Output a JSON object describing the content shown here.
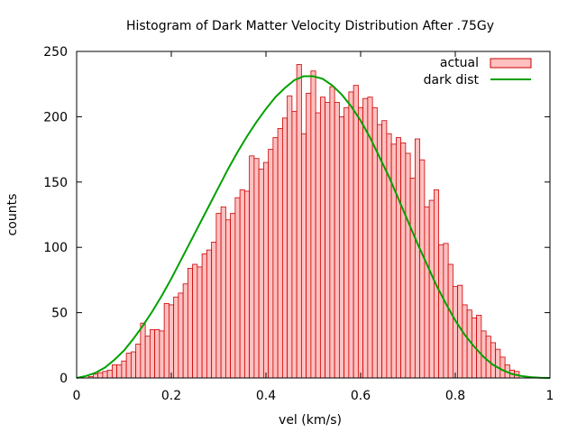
{
  "chart_data": {
    "type": "bar",
    "title": "Histogram of Dark Matter Velocity Distribution After .75Gy",
    "xlabel": "vel (km/s)",
    "ylabel": "counts",
    "xlim": [
      0,
      1
    ],
    "ylim": [
      0,
      250
    ],
    "xticks": [
      "0",
      "0.2",
      "0.4",
      "0.6",
      "0.8",
      "1"
    ],
    "yticks": [
      "0",
      "50",
      "100",
      "150",
      "200",
      "250"
    ],
    "grid": false,
    "legend_position": "top-right",
    "bin_width": 0.01,
    "series": [
      {
        "name": "actual",
        "kind": "histogram",
        "fill": "#ffc0c0",
        "stroke": "#cc0000",
        "x": [
          0.01,
          0.02,
          0.03,
          0.04,
          0.05,
          0.06,
          0.07,
          0.08,
          0.09,
          0.1,
          0.11,
          0.12,
          0.13,
          0.14,
          0.15,
          0.16,
          0.17,
          0.18,
          0.19,
          0.2,
          0.21,
          0.22,
          0.23,
          0.24,
          0.25,
          0.26,
          0.27,
          0.28,
          0.29,
          0.3,
          0.31,
          0.32,
          0.33,
          0.34,
          0.35,
          0.36,
          0.37,
          0.38,
          0.39,
          0.4,
          0.41,
          0.42,
          0.43,
          0.44,
          0.45,
          0.46,
          0.47,
          0.48,
          0.49,
          0.5,
          0.51,
          0.52,
          0.53,
          0.54,
          0.55,
          0.56,
          0.57,
          0.58,
          0.59,
          0.6,
          0.61,
          0.62,
          0.63,
          0.64,
          0.65,
          0.66,
          0.67,
          0.68,
          0.69,
          0.7,
          0.71,
          0.72,
          0.73,
          0.74,
          0.75,
          0.76,
          0.77,
          0.78,
          0.79,
          0.8,
          0.81,
          0.82,
          0.83,
          0.84,
          0.85,
          0.86,
          0.87,
          0.88,
          0.89,
          0.9,
          0.91,
          0.92,
          0.93
        ],
        "values": [
          0,
          0,
          1,
          3,
          4,
          5,
          6,
          10,
          10,
          13,
          19,
          20,
          26,
          42,
          32,
          37,
          37,
          36,
          57,
          56,
          62,
          65,
          72,
          84,
          87,
          85,
          95,
          98,
          104,
          126,
          131,
          121,
          126,
          138,
          144,
          143,
          170,
          168,
          160,
          165,
          175,
          184,
          191,
          199,
          216,
          204,
          240,
          187,
          218,
          235,
          203,
          215,
          211,
          223,
          211,
          200,
          207,
          219,
          224,
          207,
          214,
          215,
          207,
          194,
          197,
          187,
          179,
          184,
          180,
          172,
          153,
          183,
          167,
          131,
          136,
          144,
          102,
          103,
          87,
          70,
          71,
          56,
          52,
          46,
          48,
          36,
          32,
          27,
          22,
          16,
          10,
          6,
          5
        ]
      },
      {
        "name": "dark dist",
        "kind": "line",
        "color": "#00a000",
        "x": [
          0.0,
          0.02,
          0.04,
          0.06,
          0.08,
          0.1,
          0.12,
          0.14,
          0.16,
          0.18,
          0.2,
          0.22,
          0.24,
          0.26,
          0.28,
          0.3,
          0.32,
          0.34,
          0.36,
          0.38,
          0.4,
          0.42,
          0.44,
          0.46,
          0.48,
          0.5,
          0.52,
          0.54,
          0.56,
          0.58,
          0.6,
          0.62,
          0.64,
          0.66,
          0.68,
          0.7,
          0.72,
          0.74,
          0.76,
          0.78,
          0.8,
          0.82,
          0.84,
          0.86,
          0.88,
          0.9,
          0.92,
          0.94,
          0.96,
          0.98,
          1.0
        ],
        "values": [
          0,
          1.5,
          4,
          8,
          14,
          21,
          30,
          40,
          51,
          63,
          76,
          90,
          104,
          118,
          132,
          146,
          160,
          173,
          185,
          196,
          206,
          215,
          222,
          228,
          231,
          231,
          229,
          224,
          217,
          208,
          197,
          184,
          169,
          154,
          137,
          120,
          103,
          87,
          71,
          57,
          44,
          33,
          24,
          16,
          10,
          6,
          3,
          1.5,
          0.6,
          0.2,
          0
        ]
      }
    ]
  }
}
